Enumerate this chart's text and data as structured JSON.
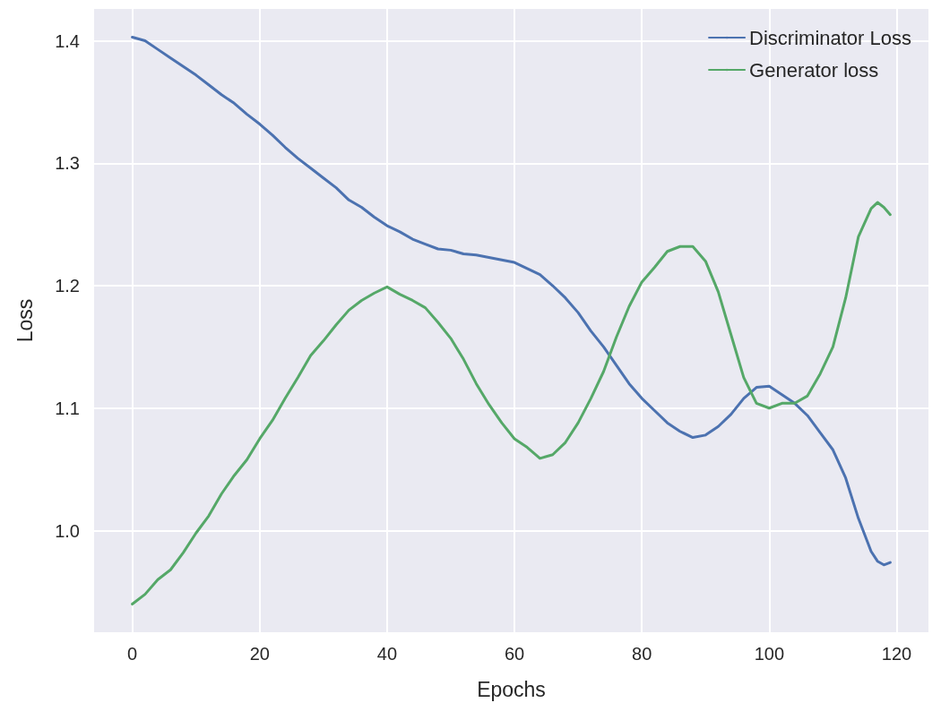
{
  "chart_data": {
    "type": "line",
    "xlabel": "Epochs",
    "ylabel": "Loss",
    "xlim": [
      -6,
      125
    ],
    "ylim": [
      0.917,
      1.426
    ],
    "xticks": [
      0,
      20,
      40,
      60,
      80,
      100,
      120
    ],
    "yticks": [
      {
        "value": 1.0,
        "label": "1.0"
      },
      {
        "value": 1.1,
        "label": "1.1"
      },
      {
        "value": 1.2,
        "label": "1.2"
      },
      {
        "value": 1.3,
        "label": "1.3"
      },
      {
        "value": 1.4,
        "label": "1.4"
      }
    ],
    "grid": true,
    "legend": "top right",
    "marker": "none",
    "line_style": "solid",
    "x": [
      0,
      2,
      4,
      6,
      8,
      10,
      12,
      14,
      16,
      18,
      20,
      22,
      24,
      26,
      28,
      30,
      32,
      34,
      36,
      38,
      40,
      42,
      44,
      46,
      48,
      50,
      52,
      54,
      56,
      58,
      60,
      62,
      64,
      66,
      68,
      70,
      72,
      74,
      76,
      78,
      80,
      82,
      84,
      86,
      88,
      90,
      92,
      94,
      96,
      98,
      100,
      102,
      104,
      106,
      108,
      110,
      112,
      114,
      116,
      117,
      118,
      119
    ],
    "series": [
      {
        "name": "Discriminator Loss",
        "color": "#4c72b0",
        "values": [
          1.403,
          1.4,
          1.393,
          1.386,
          1.379,
          1.372,
          1.364,
          1.356,
          1.349,
          1.34,
          1.332,
          1.323,
          1.313,
          1.304,
          1.296,
          1.288,
          1.28,
          1.27,
          1.264,
          1.256,
          1.249,
          1.244,
          1.238,
          1.234,
          1.23,
          1.229,
          1.226,
          1.225,
          1.223,
          1.221,
          1.219,
          1.214,
          1.209,
          1.2,
          1.19,
          1.178,
          1.163,
          1.15,
          1.135,
          1.12,
          1.108,
          1.098,
          1.088,
          1.081,
          1.076,
          1.078,
          1.085,
          1.095,
          1.108,
          1.117,
          1.118,
          1.111,
          1.104,
          1.094,
          1.08,
          1.066,
          1.043,
          1.01,
          0.983,
          0.975,
          0.972,
          0.974
        ]
      },
      {
        "name": "Generator loss",
        "color": "#55a868",
        "values": [
          0.94,
          0.948,
          0.96,
          0.968,
          0.982,
          0.998,
          1.012,
          1.03,
          1.045,
          1.058,
          1.075,
          1.09,
          1.108,
          1.125,
          1.143,
          1.155,
          1.168,
          1.18,
          1.188,
          1.194,
          1.199,
          1.193,
          1.188,
          1.182,
          1.17,
          1.157,
          1.14,
          1.12,
          1.103,
          1.088,
          1.075,
          1.068,
          1.059,
          1.062,
          1.072,
          1.088,
          1.108,
          1.13,
          1.158,
          1.183,
          1.203,
          1.215,
          1.228,
          1.232,
          1.232,
          1.22,
          1.195,
          1.16,
          1.125,
          1.104,
          1.1,
          1.104,
          1.104,
          1.11,
          1.128,
          1.15,
          1.19,
          1.24,
          1.263,
          1.268,
          1.264,
          1.258
        ]
      }
    ]
  }
}
